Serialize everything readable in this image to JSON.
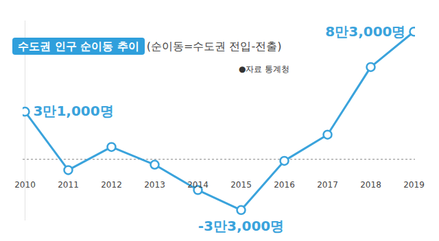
{
  "chart_data": {
    "type": "line",
    "title": "수도권 인구 순이동 추이(순이동=수도권 전입-전출)",
    "source": "●자료 통계청",
    "categories": [
      "2010",
      "2011",
      "2012",
      "2013",
      "2014",
      "2015",
      "2016",
      "2017",
      "2018",
      "2019"
    ],
    "values": [
      31000,
      -7000,
      8000,
      -3500,
      -20000,
      -33000,
      -1000,
      16000,
      60000,
      83000
    ],
    "value_labels": [
      "3만1,000명",
      null,
      null,
      null,
      null,
      "-3만3,000명",
      null,
      null,
      null,
      "8만3,000명"
    ],
    "data_labels": true,
    "color": "#3aa3dc",
    "marker": "circle",
    "ylim": [
      -40000,
      90000
    ],
    "yticks": [
      0
    ],
    "grid": true,
    "tick_labels": "x"
  }
}
